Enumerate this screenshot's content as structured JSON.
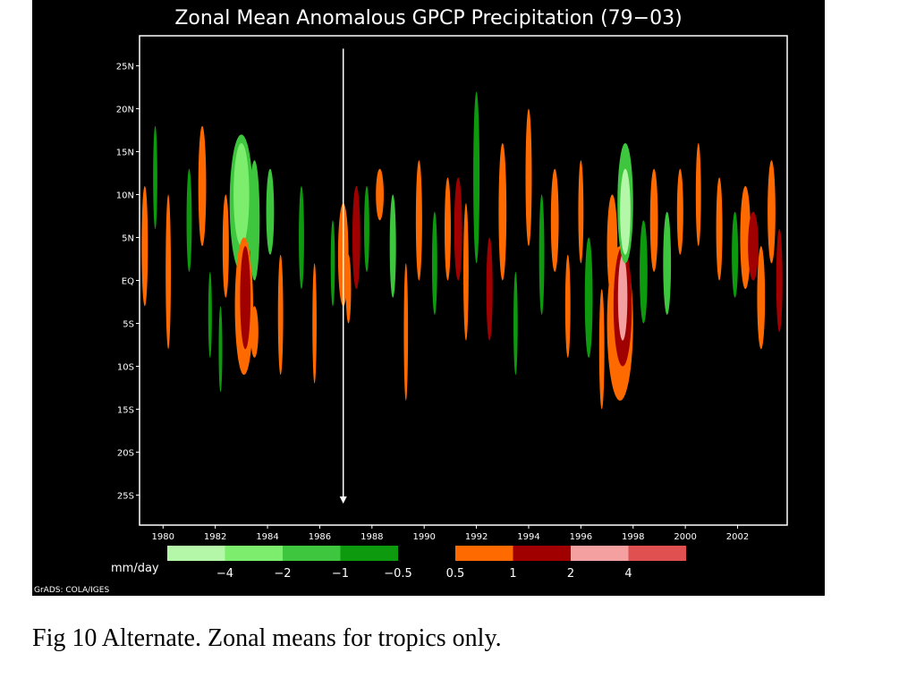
{
  "chart_data": {
    "type": "heatmap",
    "title": "Zonal Mean Anomalous GPCP Precipitation (79−03)",
    "xlabel": "",
    "ylabel": "",
    "x_ticks": [
      "1980",
      "1982",
      "1984",
      "1986",
      "1988",
      "1990",
      "1992",
      "1994",
      "1996",
      "1998",
      "2000",
      "2002"
    ],
    "y_ticks": [
      "25N",
      "20N",
      "15N",
      "10N",
      "5N",
      "EQ",
      "5S",
      "10S",
      "15S",
      "20S",
      "25S"
    ],
    "xlim": [
      1979.1,
      2003.9
    ],
    "ylim": [
      -28.5,
      28.5
    ],
    "grid": false,
    "colorbar": {
      "unit": "mm/day",
      "levels": [
        "−4",
        "−2",
        "−1",
        "−0.5",
        "0.5",
        "1",
        "2",
        "4"
      ],
      "negative_colors": [
        "#b4f7a8",
        "#7ded6e",
        "#3ec63e",
        "#0e9a0e"
      ],
      "positive_colors": [
        "#ff6a00",
        "#a00000",
        "#f4a0a0",
        "#e05050"
      ]
    },
    "anomaly_features": [
      {
        "year": 1979.3,
        "lat": 4,
        "half_width": 0.12,
        "half_height": 7,
        "level": 1
      },
      {
        "year": 1979.7,
        "lat": 12,
        "half_width": 0.08,
        "half_height": 6,
        "level": -1
      },
      {
        "year": 1980.2,
        "lat": 1,
        "half_width": 0.1,
        "half_height": 9,
        "level": 1
      },
      {
        "year": 1981.0,
        "lat": 7,
        "half_width": 0.1,
        "half_height": 6,
        "level": -1
      },
      {
        "year": 1981.5,
        "lat": 11,
        "half_width": 0.15,
        "half_height": 7,
        "level": 1
      },
      {
        "year": 1981.8,
        "lat": -4,
        "half_width": 0.07,
        "half_height": 5,
        "level": -1
      },
      {
        "year": 1982.2,
        "lat": -8,
        "half_width": 0.07,
        "half_height": 5,
        "level": -1
      },
      {
        "year": 1982.4,
        "lat": 4,
        "half_width": 0.12,
        "half_height": 6,
        "level": 1
      },
      {
        "year": 1983.0,
        "lat": 9,
        "half_width": 0.45,
        "half_height": 8,
        "level": -2
      },
      {
        "year": 1983.0,
        "lat": 10,
        "half_width": 0.3,
        "half_height": 6,
        "level": -3
      },
      {
        "year": 1983.1,
        "lat": -3,
        "half_width": 0.35,
        "half_height": 8,
        "level": 1
      },
      {
        "year": 1983.15,
        "lat": -2,
        "half_width": 0.2,
        "half_height": 6,
        "level": 2
      },
      {
        "year": 1983.5,
        "lat": 7,
        "half_width": 0.2,
        "half_height": 7,
        "level": -2
      },
      {
        "year": 1983.5,
        "lat": -6,
        "half_width": 0.15,
        "half_height": 3,
        "level": 1
      },
      {
        "year": 1984.1,
        "lat": 8,
        "half_width": 0.15,
        "half_height": 5,
        "level": -2
      },
      {
        "year": 1984.5,
        "lat": -4,
        "half_width": 0.1,
        "half_height": 7,
        "level": 1
      },
      {
        "year": 1985.3,
        "lat": 5,
        "half_width": 0.1,
        "half_height": 6,
        "level": -1
      },
      {
        "year": 1985.8,
        "lat": -5,
        "half_width": 0.08,
        "half_height": 7,
        "level": 1
      },
      {
        "year": 1986.5,
        "lat": 2,
        "half_width": 0.08,
        "half_height": 5,
        "level": -1
      },
      {
        "year": 1986.9,
        "lat": 3,
        "half_width": 0.2,
        "half_height": 6,
        "level": 1
      },
      {
        "year": 1987.1,
        "lat": -1,
        "half_width": 0.1,
        "half_height": 4,
        "level": 1
      },
      {
        "year": 1987.4,
        "lat": 5,
        "half_width": 0.15,
        "half_height": 6,
        "level": 2
      },
      {
        "year": 1987.8,
        "lat": 6,
        "half_width": 0.1,
        "half_height": 5,
        "level": -1
      },
      {
        "year": 1988.3,
        "lat": 10,
        "half_width": 0.15,
        "half_height": 3,
        "level": 1
      },
      {
        "year": 1988.8,
        "lat": 4,
        "half_width": 0.12,
        "half_height": 6,
        "level": -2
      },
      {
        "year": 1989.3,
        "lat": -6,
        "half_width": 0.08,
        "half_height": 8,
        "level": 1
      },
      {
        "year": 1989.8,
        "lat": 7,
        "half_width": 0.12,
        "half_height": 7,
        "level": 1
      },
      {
        "year": 1990.4,
        "lat": 2,
        "half_width": 0.1,
        "half_height": 6,
        "level": -1
      },
      {
        "year": 1990.9,
        "lat": 6,
        "half_width": 0.12,
        "half_height": 6,
        "level": 1
      },
      {
        "year": 1991.3,
        "lat": 6,
        "half_width": 0.15,
        "half_height": 6,
        "level": 2
      },
      {
        "year": 1991.6,
        "lat": 1,
        "half_width": 0.1,
        "half_height": 8,
        "level": 1
      },
      {
        "year": 1992.0,
        "lat": 12,
        "half_width": 0.12,
        "half_height": 10,
        "level": -1
      },
      {
        "year": 1992.5,
        "lat": -1,
        "half_width": 0.12,
        "half_height": 6,
        "level": 2
      },
      {
        "year": 1993.0,
        "lat": 8,
        "half_width": 0.15,
        "half_height": 8,
        "level": 1
      },
      {
        "year": 1993.5,
        "lat": -5,
        "half_width": 0.08,
        "half_height": 6,
        "level": -1
      },
      {
        "year": 1994.0,
        "lat": 12,
        "half_width": 0.12,
        "half_height": 8,
        "level": 1
      },
      {
        "year": 1994.5,
        "lat": 3,
        "half_width": 0.1,
        "half_height": 7,
        "level": -1
      },
      {
        "year": 1995.0,
        "lat": 7,
        "half_width": 0.15,
        "half_height": 6,
        "level": 1
      },
      {
        "year": 1995.5,
        "lat": -3,
        "half_width": 0.1,
        "half_height": 6,
        "level": 1
      },
      {
        "year": 1996.0,
        "lat": 8,
        "half_width": 0.1,
        "half_height": 6,
        "level": 1
      },
      {
        "year": 1996.3,
        "lat": -2,
        "half_width": 0.15,
        "half_height": 7,
        "level": -1
      },
      {
        "year": 1996.8,
        "lat": -8,
        "half_width": 0.1,
        "half_height": 7,
        "level": 1
      },
      {
        "year": 1997.2,
        "lat": 4,
        "half_width": 0.2,
        "half_height": 6,
        "level": 1
      },
      {
        "year": 1997.5,
        "lat": -5,
        "half_width": 0.5,
        "half_height": 9,
        "level": 1
      },
      {
        "year": 1997.6,
        "lat": -3,
        "half_width": 0.35,
        "half_height": 7,
        "level": 2
      },
      {
        "year": 1997.6,
        "lat": -2,
        "half_width": 0.18,
        "half_height": 5,
        "level": 3
      },
      {
        "year": 1997.7,
        "lat": 9,
        "half_width": 0.3,
        "half_height": 7,
        "level": -2
      },
      {
        "year": 1997.7,
        "lat": 8,
        "half_width": 0.2,
        "half_height": 5,
        "level": -4
      },
      {
        "year": 1998.4,
        "lat": 1,
        "half_width": 0.15,
        "half_height": 6,
        "level": -1
      },
      {
        "year": 1998.8,
        "lat": 7,
        "half_width": 0.15,
        "half_height": 6,
        "level": 1
      },
      {
        "year": 1999.3,
        "lat": 2,
        "half_width": 0.15,
        "half_height": 6,
        "level": -2
      },
      {
        "year": 1999.8,
        "lat": 8,
        "half_width": 0.12,
        "half_height": 5,
        "level": 1
      },
      {
        "year": 2000.5,
        "lat": 10,
        "half_width": 0.1,
        "half_height": 6,
        "level": 1
      },
      {
        "year": 2001.3,
        "lat": 6,
        "half_width": 0.12,
        "half_height": 6,
        "level": 1
      },
      {
        "year": 2001.9,
        "lat": 3,
        "half_width": 0.12,
        "half_height": 5,
        "level": -1
      },
      {
        "year": 2002.3,
        "lat": 5,
        "half_width": 0.2,
        "half_height": 6,
        "level": 1
      },
      {
        "year": 2002.6,
        "lat": 4,
        "half_width": 0.2,
        "half_height": 4,
        "level": 2
      },
      {
        "year": 2002.9,
        "lat": -2,
        "half_width": 0.15,
        "half_height": 6,
        "level": 1
      },
      {
        "year": 2003.3,
        "lat": 8,
        "half_width": 0.15,
        "half_height": 6,
        "level": 1
      },
      {
        "year": 2003.6,
        "lat": 0,
        "half_width": 0.12,
        "half_height": 6,
        "level": 2
      }
    ],
    "annotations": [
      {
        "type": "arrow",
        "year": 1986.9,
        "lat_start": 27,
        "lat_end": -26
      }
    ]
  },
  "footer_credit": "GrADS: COLA/IGES",
  "caption": "Fig 10 Alternate. Zonal means for tropics only."
}
